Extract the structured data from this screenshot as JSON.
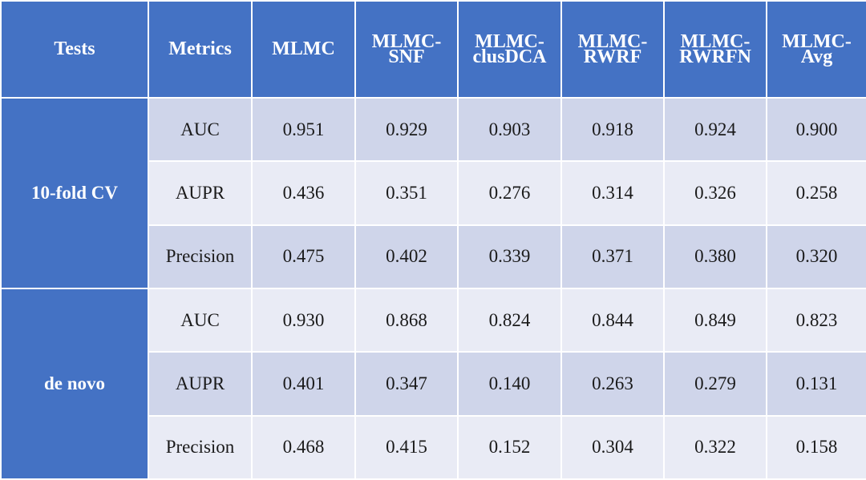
{
  "header": {
    "tests": "Tests",
    "metrics": "Metrics",
    "methods": [
      [
        "MLMC"
      ],
      [
        "MLMC-",
        "SNF"
      ],
      [
        "MLMC-",
        "clusDCA"
      ],
      [
        "MLMC-",
        "RWRF"
      ],
      [
        "MLMC-",
        "RWRFN"
      ],
      [
        "MLMC-",
        "Avg"
      ]
    ]
  },
  "groups": [
    {
      "test": "10-fold CV",
      "rows": [
        {
          "metric": "AUC",
          "values": [
            "0.951",
            "0.929",
            "0.903",
            "0.918",
            "0.924",
            "0.900"
          ]
        },
        {
          "metric": "AUPR",
          "values": [
            "0.436",
            "0.351",
            "0.276",
            "0.314",
            "0.326",
            "0.258"
          ]
        },
        {
          "metric": "Precision",
          "values": [
            "0.475",
            "0.402",
            "0.339",
            "0.371",
            "0.380",
            "0.320"
          ]
        }
      ]
    },
    {
      "test": "de novo",
      "rows": [
        {
          "metric": "AUC",
          "values": [
            "0.930",
            "0.868",
            "0.824",
            "0.844",
            "0.849",
            "0.823"
          ]
        },
        {
          "metric": "AUPR",
          "values": [
            "0.401",
            "0.347",
            "0.140",
            "0.263",
            "0.279",
            "0.131"
          ]
        },
        {
          "metric": "Precision",
          "values": [
            "0.468",
            "0.415",
            "0.152",
            "0.304",
            "0.322",
            "0.158"
          ]
        }
      ]
    }
  ],
  "colors": {
    "header_bg": "#4472c4",
    "band_dark": "#cfd5ea",
    "band_light": "#e9ebf5"
  }
}
